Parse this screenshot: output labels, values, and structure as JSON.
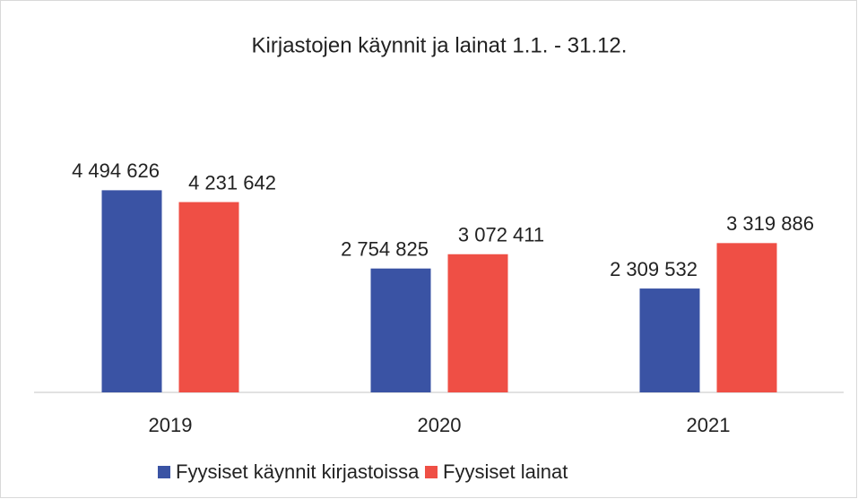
{
  "chart_data": {
    "type": "bar",
    "title": "Kirjastojen käynnit ja lainat 1.1. - 31.12.",
    "categories": [
      "2019",
      "2020",
      "2021"
    ],
    "series": [
      {
        "name": "Fyysiset käynnit kirjastoissa",
        "color": "#3a53a4",
        "values": [
          4494626,
          2754825,
          2309532
        ],
        "value_labels": [
          "4 494 626",
          "2 754 825",
          "2 309 532"
        ]
      },
      {
        "name": "Fyysiset lainat",
        "color": "#ef4f45",
        "values": [
          4231642,
          3072411,
          3319886
        ],
        "value_labels": [
          "4 231 642",
          "3 072 411",
          "3 319 886"
        ]
      }
    ],
    "ylim": [
      0,
      5000000
    ],
    "legend": "bottom"
  }
}
